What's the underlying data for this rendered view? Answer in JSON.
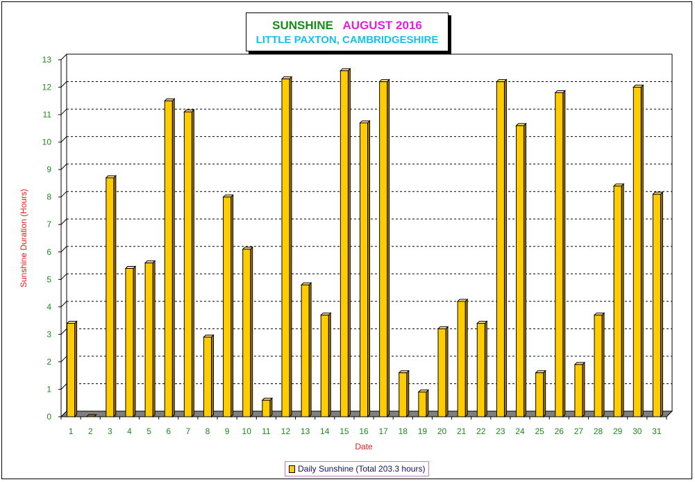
{
  "chart_data": {
    "type": "bar",
    "title_part1": "SUNSHINE",
    "title_part2": "AUGUST 2016",
    "subtitle": "LITTLE PAXTON, CAMBRIDGESHIRE",
    "xlabel": "Date",
    "ylabel": "Sunshine Duration (Hours)",
    "ylim": [
      0,
      13
    ],
    "yticks": [
      0,
      1,
      2,
      3,
      4,
      5,
      6,
      7,
      8,
      9,
      10,
      11,
      12,
      13
    ],
    "grid": "horizontal dashed",
    "categories": [
      "1",
      "2",
      "3",
      "4",
      "5",
      "6",
      "7",
      "8",
      "9",
      "10",
      "11",
      "12",
      "13",
      "14",
      "15",
      "16",
      "17",
      "18",
      "19",
      "20",
      "21",
      "22",
      "23",
      "24",
      "25",
      "26",
      "27",
      "28",
      "29",
      "30",
      "31"
    ],
    "series": [
      {
        "name": "Daily Sunshine (Total 203.3 hours)",
        "values": [
          3.4,
          0.0,
          8.7,
          5.4,
          5.6,
          11.5,
          11.1,
          2.9,
          8.0,
          6.1,
          0.6,
          12.3,
          4.8,
          3.7,
          12.6,
          10.7,
          12.2,
          1.6,
          0.9,
          3.2,
          4.2,
          3.4,
          12.2,
          10.6,
          1.6,
          11.8,
          1.9,
          3.7,
          8.4,
          12.0,
          8.1
        ]
      }
    ],
    "legend_position": "bottom-center",
    "colors": {
      "bar": "#ffcc00",
      "bar_side": "#a07800",
      "bar_top": "#ffe680",
      "bar_outline": "#000000",
      "axis_ticks": "#1a8a1a",
      "axis_title": "#e02020",
      "floor": "#808080",
      "title_part1": "#1a8a1a",
      "title_part2": "#e020e0",
      "subtitle": "#18c0e8"
    }
  }
}
